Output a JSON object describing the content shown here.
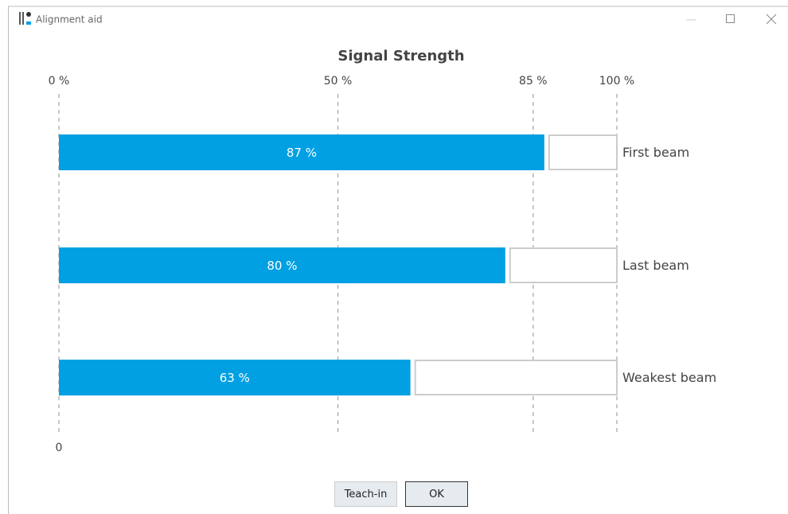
{
  "window": {
    "title": "Alignment aid"
  },
  "chart_data": {
    "type": "bar",
    "orientation": "horizontal",
    "title": "Signal Strength",
    "categories": [
      "First beam",
      "Last beam",
      "Weakest beam"
    ],
    "values": [
      87,
      80,
      63
    ],
    "value_labels": [
      "87 %",
      "80 %",
      "63 %"
    ],
    "color": "#00a0e3",
    "xlim": [
      0,
      100
    ],
    "xticks": [
      {
        "value": 0,
        "label": "0 %"
      },
      {
        "value": 50,
        "label": "50 %"
      },
      {
        "value": 85,
        "label": "85 %"
      },
      {
        "value": 100,
        "label": "100 %"
      }
    ],
    "bottom_xticks": [
      0
    ],
    "grid": true
  },
  "buttons": [
    "Teach-in",
    "OK"
  ]
}
